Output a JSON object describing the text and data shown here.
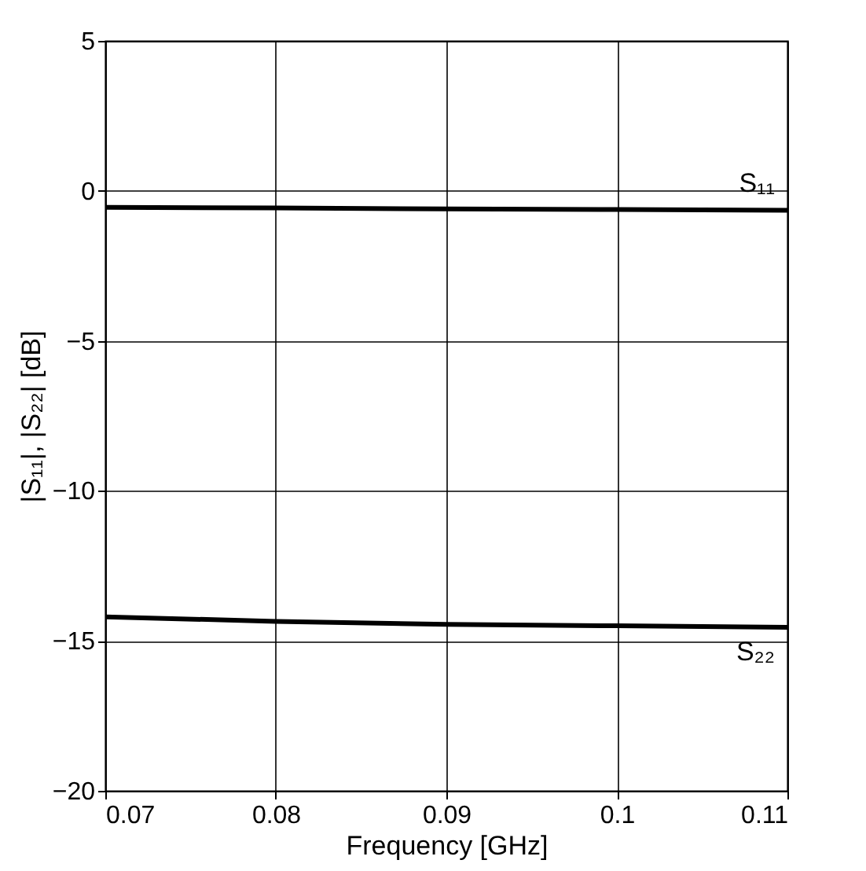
{
  "chart_data": {
    "type": "line",
    "xlabel": "Frequency [GHz]",
    "ylabel": "|S₁₁|, |S₂₂| [dB]",
    "x": [
      0.07,
      0.08,
      0.09,
      0.1,
      0.11
    ],
    "series": [
      {
        "name": "S₁₁",
        "color": "#000000",
        "values": [
          -0.55,
          -0.57,
          -0.6,
          -0.62,
          -0.65
        ]
      },
      {
        "name": "S₂₂",
        "color": "#000000",
        "values": [
          -14.2,
          -14.35,
          -14.45,
          -14.5,
          -14.55
        ]
      }
    ],
    "xlim": [
      0.07,
      0.11
    ],
    "xticks": [
      0.07,
      0.08,
      0.09,
      0.1,
      0.11
    ],
    "ylim": [
      -20,
      5
    ],
    "yticks": [
      -20,
      -15,
      -10,
      -5,
      0,
      5
    ],
    "grid": true,
    "marker": "none",
    "line_style": "solid"
  }
}
